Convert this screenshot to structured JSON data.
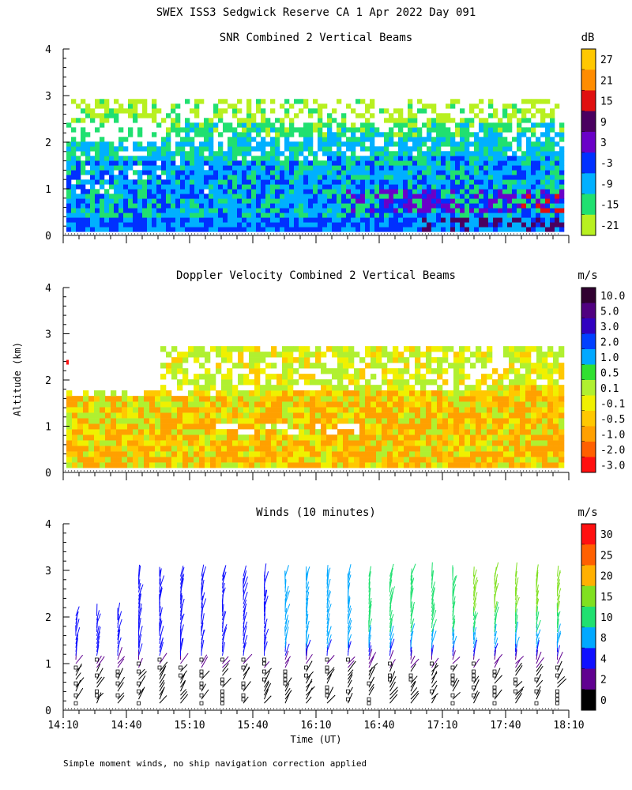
{
  "title": "SWEX ISS3 Sedgwick Reserve CA   1 Apr 2022 Day 091",
  "ylabel": "Altitude (km)",
  "footnote": "Simple moment winds, no ship navigation correction applied",
  "chart_data": [
    {
      "type": "heatmap",
      "title": "SNR Combined 2 Vertical Beams",
      "xlabel": "",
      "ylabel": "Altitude (km)",
      "ylim": [
        0,
        4
      ],
      "xlim": [
        "14:10",
        "18:10"
      ],
      "yticks": [
        "0",
        "1",
        "2",
        "3",
        "4"
      ],
      "colorbar": {
        "units": "dB",
        "labels": [
          "27",
          "21",
          "15",
          "9",
          "3",
          "-3",
          "-9",
          "-15",
          "-21"
        ],
        "colors": [
          "#ffc800",
          "#ff8c00",
          "#e01010",
          "#4a0060",
          "#6a00c8",
          "#0030ff",
          "#00b0ff",
          "#20e070",
          "#b8f020"
        ]
      },
      "bands": [
        {
          "range": [
            0.1,
            0.35
          ],
          "value": 9,
          "note": "strongest, purple/dark red at late times"
        },
        {
          "range": [
            0.35,
            1.5
          ],
          "value": -3,
          "note": "blue/cyan layer"
        },
        {
          "range": [
            1.5,
            2.3
          ],
          "value": -12,
          "note": "cyan to green layers"
        },
        {
          "range": [
            2.3,
            2.8
          ],
          "value": -18,
          "note": "sparse green/yellow-green echoes"
        }
      ]
    },
    {
      "type": "heatmap",
      "title": "Doppler Velocity Combined 2 Vertical Beams",
      "xlabel": "",
      "ylabel": "Altitude (km)",
      "ylim": [
        0,
        4
      ],
      "xlim": [
        "14:10",
        "18:10"
      ],
      "yticks": [
        "0",
        "1",
        "2",
        "3",
        "4"
      ],
      "colorbar": {
        "units": "m/s",
        "labels": [
          "10.0",
          "5.0",
          "3.0",
          "2.0",
          "1.0",
          "0.5",
          "0.1",
          "-0.1",
          "-0.5",
          "-1.0",
          "-2.0",
          "-3.0"
        ],
        "colors": [
          "#300030",
          "#500080",
          "#3000c0",
          "#0040ff",
          "#00a8ff",
          "#30e030",
          "#b0f030",
          "#f0f000",
          "#ffc800",
          "#ffa000",
          "#ff6000",
          "#ff1010"
        ]
      },
      "bands": [
        {
          "range": [
            0.1,
            1.6
          ],
          "value": -0.3,
          "note": "mostly yellow/orange, weak downward motion"
        },
        {
          "range": [
            1.6,
            2.7
          ],
          "value": -0.1,
          "note": "patchy yellow-green"
        }
      ]
    },
    {
      "type": "scatter",
      "title": "Winds (10 minutes)",
      "xlabel": "Time (UT)",
      "ylabel": "Altitude (km)",
      "ylim": [
        0,
        4
      ],
      "xticklabels": [
        "14:10",
        "14:40",
        "15:10",
        "15:40",
        "16:10",
        "16:40",
        "17:10",
        "17:40",
        "18:10"
      ],
      "yticks": [
        "0",
        "1",
        "2",
        "3",
        "4"
      ],
      "colorbar": {
        "units": "m/s",
        "labels": [
          "30",
          "25",
          "20",
          "15",
          "10",
          "8",
          "4",
          "2",
          "0"
        ],
        "colors": [
          "#ff1010",
          "#ff6000",
          "#ffb000",
          "#80e020",
          "#20e070",
          "#00a8ff",
          "#1010ff",
          "#600090",
          "#000000"
        ]
      },
      "wind_profile_note": "wind barbs every 10 minutes from 14:20 to 18:10; speeds increase with altitude, 10-20 m/s above 2 km after 16:40"
    }
  ]
}
